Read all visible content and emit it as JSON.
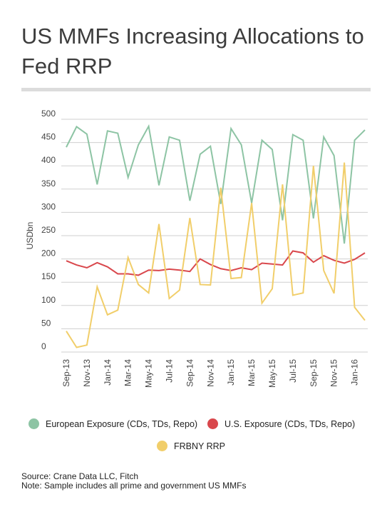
{
  "title": "US MMFs Increasing Allocations to Fed RRP",
  "chart_data": {
    "type": "line",
    "ylabel": "USDbn",
    "ylim": [
      0,
      500
    ],
    "yticks": [
      0,
      50,
      100,
      150,
      200,
      250,
      300,
      350,
      400,
      450,
      500
    ],
    "grid": true,
    "legend_position": "bottom",
    "x": [
      "Sep-13",
      "Oct-13",
      "Nov-13",
      "Dec-13",
      "Jan-14",
      "Feb-14",
      "Mar-14",
      "Apr-14",
      "May-14",
      "Jun-14",
      "Jul-14",
      "Aug-14",
      "Sep-14",
      "Oct-14",
      "Nov-14",
      "Dec-14",
      "Jan-15",
      "Feb-15",
      "Mar-15",
      "Apr-15",
      "May-15",
      "Jun-15",
      "Jul-15",
      "Aug-15",
      "Sep-15",
      "Oct-15",
      "Nov-15",
      "Dec-15",
      "Jan-16",
      "Feb-16"
    ],
    "xticklabels": [
      "Sep-13",
      "Nov-13",
      "Jan-14",
      "Mar-14",
      "May-14",
      "Jul-14",
      "Sep-14",
      "Nov-14",
      "Jan-15",
      "Mar-15",
      "May-15",
      "Jul-15",
      "Sep-15",
      "Nov-15",
      "Jan-16"
    ],
    "series": [
      {
        "name": "European Exposure (CDs, TDs, Repo)",
        "color": "#8dc4a4",
        "values": [
          440,
          484,
          468,
          360,
          475,
          470,
          375,
          445,
          485,
          358,
          462,
          455,
          325,
          425,
          442,
          318,
          480,
          445,
          320,
          455,
          435,
          283,
          467,
          455,
          287,
          462,
          422,
          233,
          455,
          477
        ]
      },
      {
        "name": "U.S. Exposure (CDs, TDs, Repo)",
        "color": "#d9474c",
        "values": [
          196,
          187,
          181,
          192,
          183,
          168,
          168,
          165,
          176,
          175,
          178,
          176,
          173,
          200,
          188,
          179,
          175,
          181,
          177,
          191,
          189,
          187,
          217,
          213,
          193,
          207,
          197,
          191,
          199,
          213
        ]
      },
      {
        "name": "FRBNY RRP",
        "color": "#f1ce6a",
        "values": [
          45,
          10,
          15,
          140,
          80,
          90,
          203,
          145,
          127,
          275,
          115,
          133,
          288,
          145,
          144,
          353,
          158,
          160,
          320,
          105,
          136,
          360,
          122,
          127,
          400,
          175,
          126,
          407,
          96,
          68
        ]
      }
    ]
  },
  "legend": [
    {
      "label": "European Exposure (CDs, TDs, Repo)",
      "color": "#8dc4a4"
    },
    {
      "label": "U.S. Exposure (CDs, TDs, Repo)",
      "color": "#d9474c"
    },
    {
      "label": "FRBNY RRP",
      "color": "#f1ce6a"
    }
  ],
  "source": "Source: Crane Data LLC, Fitch",
  "note": "Note: Sample includes all prime and government US MMFs"
}
